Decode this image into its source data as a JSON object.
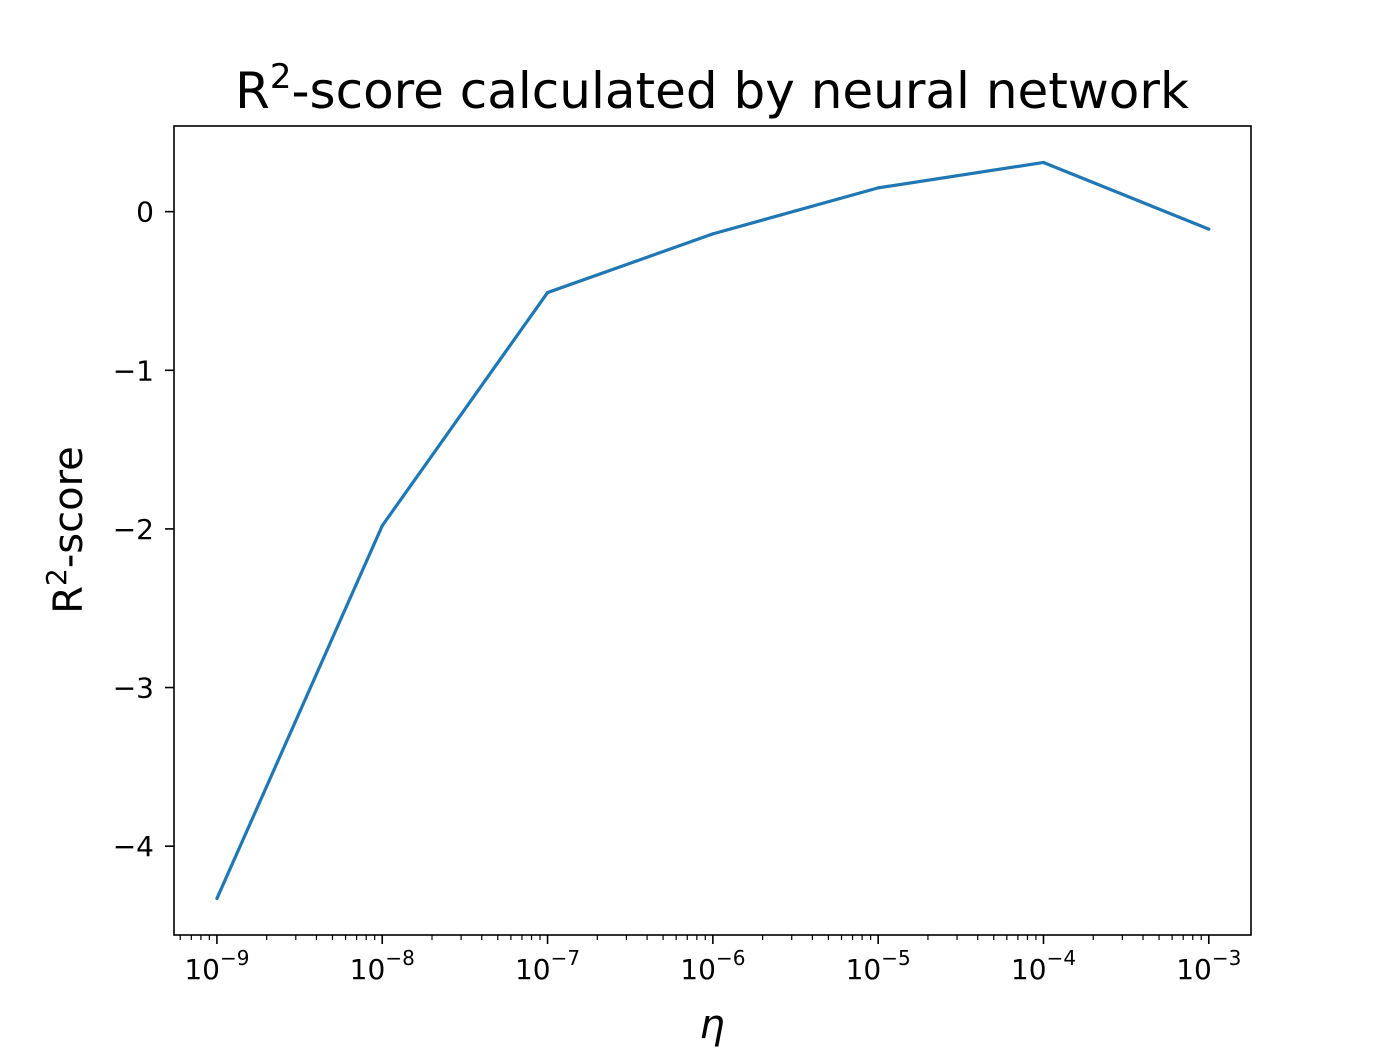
{
  "chart_data": {
    "type": "line",
    "title": "R²-score calculated by neural network",
    "title_parts": {
      "base": "R",
      "sup": "2",
      "rest": "-score calculated by neural network"
    },
    "xlabel": "η",
    "ylabel": "R²-score",
    "ylabel_parts": {
      "base": "R",
      "sup": "2",
      "rest": "-score"
    },
    "xscale": "log",
    "xlim": [
      5.5e-10,
      0.0018
    ],
    "ylim": [
      -4.56,
      0.54
    ],
    "grid": false,
    "x": [
      1e-09,
      1e-08,
      1e-07,
      1e-06,
      1e-05,
      0.0001,
      0.001
    ],
    "series": [
      {
        "values": [
          -4.33,
          -1.98,
          -0.51,
          -0.14,
          0.15,
          0.31,
          -0.11
        ],
        "color": "#1f77b4"
      }
    ],
    "x_ticks": [
      {
        "value": 1e-09,
        "base": "10",
        "exp": "−9"
      },
      {
        "value": 1e-08,
        "base": "10",
        "exp": "−8"
      },
      {
        "value": 1e-07,
        "base": "10",
        "exp": "−7"
      },
      {
        "value": 1e-06,
        "base": "10",
        "exp": "−6"
      },
      {
        "value": 1e-05,
        "base": "10",
        "exp": "−5"
      },
      {
        "value": 0.0001,
        "base": "10",
        "exp": "−4"
      },
      {
        "value": 0.001,
        "base": "10",
        "exp": "−3"
      }
    ],
    "y_ticks": [
      {
        "value": 0,
        "label": "0"
      },
      {
        "value": -1,
        "label": "−1"
      },
      {
        "value": -2,
        "label": "−2"
      },
      {
        "value": -3,
        "label": "−3"
      },
      {
        "value": -4,
        "label": "−4"
      }
    ]
  }
}
